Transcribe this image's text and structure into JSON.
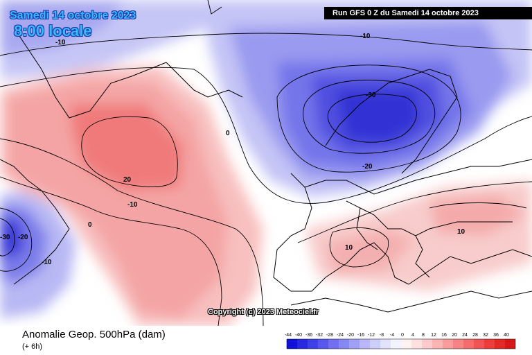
{
  "header": {
    "date": "Samedi 14 octobre 2023",
    "time": "8:00 locale",
    "run": "Run GFS 0 Z du Samedi 14 octobre 2023"
  },
  "copyright": "Copyright (c) 2023 Meteociel.fr",
  "footer": {
    "parameter": "Anomalie Geop. 500hPa (dam)",
    "forecast_offset": "(+ 6h)"
  },
  "contour_labels": [
    {
      "text": "-10",
      "id": "greenland-nw"
    },
    {
      "text": "-10",
      "id": "norwegian-sea-n"
    },
    {
      "text": "-30",
      "id": "scandinavia-core"
    },
    {
      "text": "-20",
      "id": "north-sea"
    },
    {
      "text": "0",
      "id": "mid-atlantic"
    },
    {
      "text": "20",
      "id": "atlantic-ridge"
    },
    {
      "text": "-10",
      "id": "central-atlantic"
    },
    {
      "text": "0",
      "id": "western-atlantic"
    },
    {
      "text": "-30",
      "id": "newfoundland-core"
    },
    {
      "text": "-20",
      "id": "newfoundland"
    },
    {
      "text": "-10",
      "id": "nova-scotia"
    },
    {
      "text": "10",
      "id": "italy"
    },
    {
      "text": "10",
      "id": "balkans"
    }
  ],
  "legend": {
    "values": [
      "-44",
      "-40",
      "-36",
      "-32",
      "-28",
      "-24",
      "-20",
      "-16",
      "-12",
      "-8",
      "-4",
      "0",
      "4",
      "8",
      "12",
      "16",
      "20",
      "24",
      "28",
      "32",
      "36",
      "40"
    ],
    "colors": [
      "#1010d8",
      "#2828e0",
      "#4040e8",
      "#5858ee",
      "#7070f0",
      "#8888f4",
      "#a0a0f6",
      "#b8b8f8",
      "#cdcdfa",
      "#e2e2fc",
      "#f4f4ff",
      "#fff2f2",
      "#fde0e0",
      "#fccaca",
      "#fab4b4",
      "#f89c9c",
      "#f68484",
      "#f46c6c",
      "#f05454",
      "#ec3c3c",
      "#e42828",
      "#d81818"
    ]
  },
  "colors": {
    "deep_negative": "#2828d8",
    "negative": "#9090f0",
    "neutral": "#ffffff",
    "positive": "#f6a0a0",
    "strong_positive": "#f27070",
    "land_line": "#000000"
  }
}
